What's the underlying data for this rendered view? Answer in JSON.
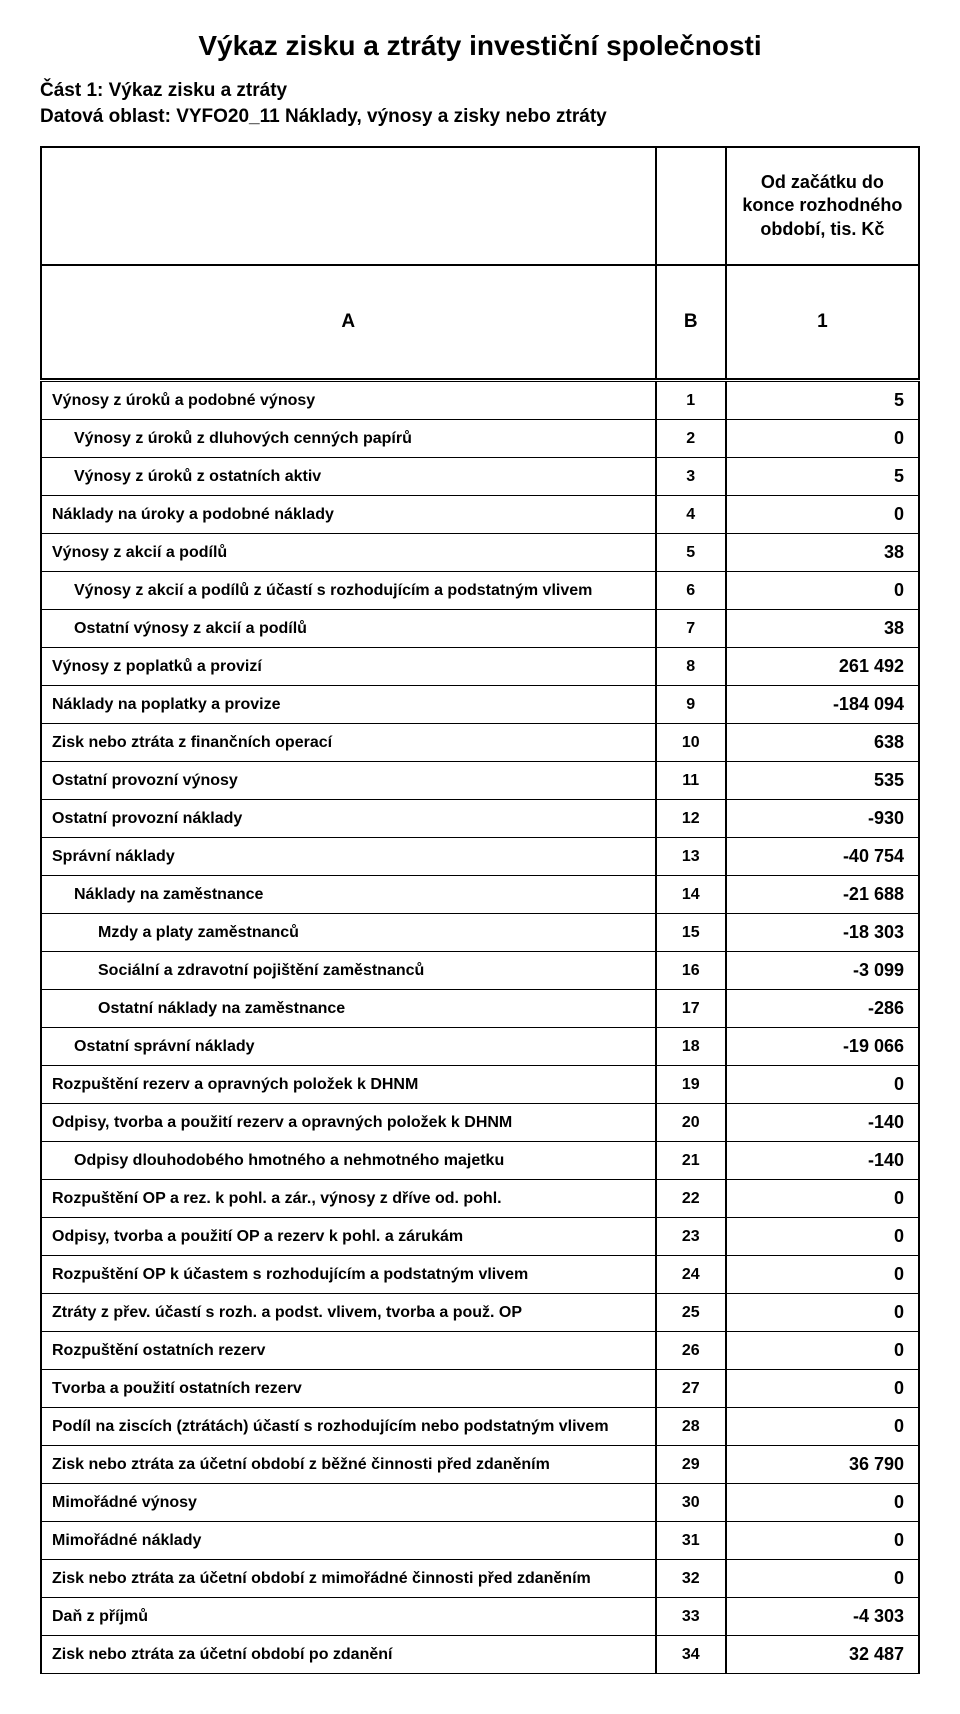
{
  "title": "Výkaz zisku a ztráty investiční společnosti",
  "subtitle1": "Část 1: Výkaz zisku a ztráty",
  "subtitle2": "Datová oblast: VYFO20_11 Náklady, výnosy a zisky nebo ztráty",
  "header": {
    "col_c_text": "Od začátku do konce rozhodného období, tis. Kč",
    "letter_a": "A",
    "letter_b": "B",
    "letter_one": "1"
  },
  "rows": [
    {
      "label": "Výnosy z úroků a podobné výnosy",
      "n": "1",
      "v": "5",
      "indent": 0
    },
    {
      "label": "Výnosy z úroků z dluhových cenných papírů",
      "n": "2",
      "v": "0",
      "indent": 1
    },
    {
      "label": "Výnosy z úroků z ostatních aktiv",
      "n": "3",
      "v": "5",
      "indent": 1
    },
    {
      "label": "Náklady na úroky a podobné náklady",
      "n": "4",
      "v": "0",
      "indent": 0
    },
    {
      "label": "Výnosy z akcií a podílů",
      "n": "5",
      "v": "38",
      "indent": 0
    },
    {
      "label": "Výnosy z akcií a podílů z účastí s rozhodujícím a podstatným vlivem",
      "n": "6",
      "v": "0",
      "indent": 1
    },
    {
      "label": "Ostatní výnosy z akcií a podílů",
      "n": "7",
      "v": "38",
      "indent": 1
    },
    {
      "label": "Výnosy z poplatků a provizí",
      "n": "8",
      "v": "261 492",
      "indent": 0
    },
    {
      "label": "Náklady na poplatky a provize",
      "n": "9",
      "v": "-184 094",
      "indent": 0
    },
    {
      "label": "Zisk nebo ztráta z finančních operací",
      "n": "10",
      "v": "638",
      "indent": 0
    },
    {
      "label": "Ostatní provozní výnosy",
      "n": "11",
      "v": "535",
      "indent": 0
    },
    {
      "label": "Ostatní provozní náklady",
      "n": "12",
      "v": "-930",
      "indent": 0
    },
    {
      "label": "Správní náklady",
      "n": "13",
      "v": "-40 754",
      "indent": 0
    },
    {
      "label": "Náklady na zaměstnance",
      "n": "14",
      "v": "-21 688",
      "indent": 1
    },
    {
      "label": "Mzdy a platy zaměstnanců",
      "n": "15",
      "v": "-18 303",
      "indent": 2
    },
    {
      "label": "Sociální a zdravotní pojištění zaměstnanců",
      "n": "16",
      "v": "-3 099",
      "indent": 2
    },
    {
      "label": "Ostatní náklady na zaměstnance",
      "n": "17",
      "v": "-286",
      "indent": 2
    },
    {
      "label": "Ostatní správní náklady",
      "n": "18",
      "v": "-19 066",
      "indent": 1
    },
    {
      "label": "Rozpuštění rezerv a opravných položek k DHNM",
      "n": "19",
      "v": "0",
      "indent": 0
    },
    {
      "label": "Odpisy, tvorba a použití rezerv a opravných položek k DHNM",
      "n": "20",
      "v": "-140",
      "indent": 0
    },
    {
      "label": "Odpisy dlouhodobého hmotného a nehmotného majetku",
      "n": "21",
      "v": "-140",
      "indent": 1
    },
    {
      "label": "Rozpuštění OP a rez. k pohl. a zár., výnosy z dříve od. pohl.",
      "n": "22",
      "v": "0",
      "indent": 0
    },
    {
      "label": "Odpisy, tvorba a použití OP a rezerv k pohl. a zárukám",
      "n": "23",
      "v": "0",
      "indent": 0
    },
    {
      "label": "Rozpuštění OP k účastem s rozhodujícím a podstatným vlivem",
      "n": "24",
      "v": "0",
      "indent": 0
    },
    {
      "label": "Ztráty z přev. účastí s rozh. a podst. vlivem, tvorba a použ. OP",
      "n": "25",
      "v": "0",
      "indent": 0
    },
    {
      "label": "Rozpuštění ostatních rezerv",
      "n": "26",
      "v": "0",
      "indent": 0
    },
    {
      "label": "Tvorba a použití ostatních rezerv",
      "n": "27",
      "v": "0",
      "indent": 0
    },
    {
      "label": "Podíl na ziscích (ztrátách) účastí s rozhodujícím nebo podstatným vlivem",
      "n": "28",
      "v": "0",
      "indent": 0
    },
    {
      "label": "Zisk nebo ztráta za účetní období z běžné činnosti před zdaněním",
      "n": "29",
      "v": "36 790",
      "indent": 0
    },
    {
      "label": "Mimořádné výnosy",
      "n": "30",
      "v": "0",
      "indent": 0
    },
    {
      "label": "Mimořádné náklady",
      "n": "31",
      "v": "0",
      "indent": 0
    },
    {
      "label": "Zisk nebo ztráta za účetní období z mimořádné činnosti před zdaněním",
      "n": "32",
      "v": "0",
      "indent": 0
    },
    {
      "label": "Daň z příjmů",
      "n": "33",
      "v": "-4 303",
      "indent": 0
    },
    {
      "label": "Zisk nebo ztráta za účetní období po zdanění",
      "n": "34",
      "v": "32 487",
      "indent": 0
    }
  ]
}
